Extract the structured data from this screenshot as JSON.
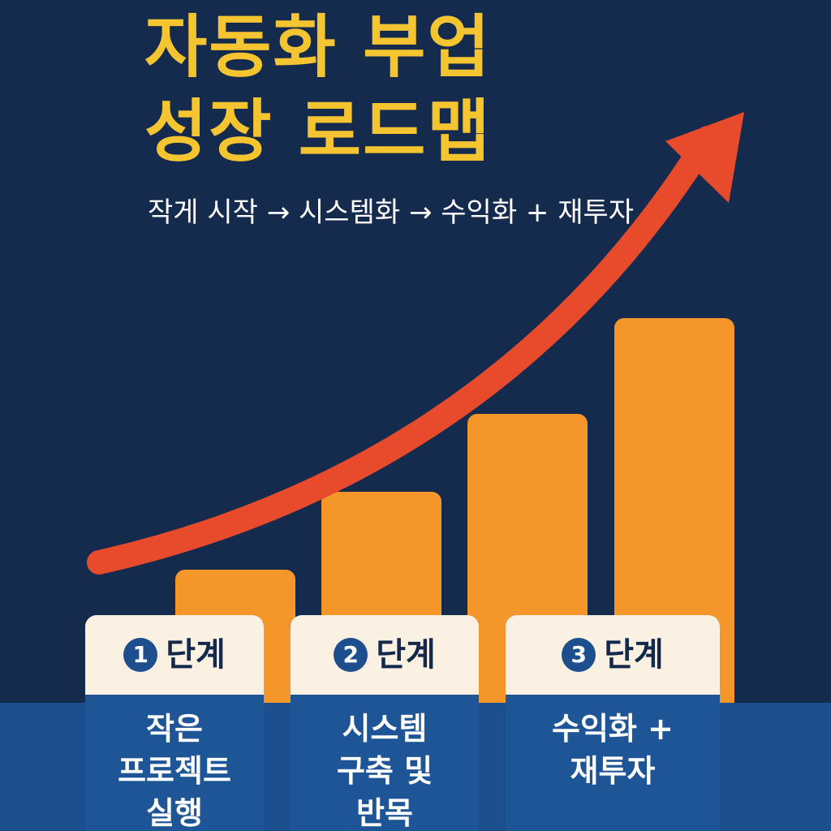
{
  "title": {
    "line1": "자동화 부업",
    "line2": "성장 로드맵"
  },
  "subtitle": "작게 시작 → 시스템화 → 수익화 + 재투자",
  "colors": {
    "background": "#152b4e",
    "title": "#f5c431",
    "bar": "#f4962a",
    "arrow": "#e84a2c",
    "card_head": "#fbf1e2",
    "card_body": "#1e5596"
  },
  "bars": [
    {
      "level": 1
    },
    {
      "level": 2
    },
    {
      "level": 3
    },
    {
      "level": 4
    }
  ],
  "steps": [
    {
      "number": "1",
      "label": "단계",
      "description": "작은\n프로젝트\n실행"
    },
    {
      "number": "2",
      "label": "단계",
      "description": "시스템\n구축 및\n반목"
    },
    {
      "number": "3",
      "label": "단계",
      "description": "수익화 +\n재투자"
    }
  ],
  "arrow_icon": "growth-arrow-icon"
}
